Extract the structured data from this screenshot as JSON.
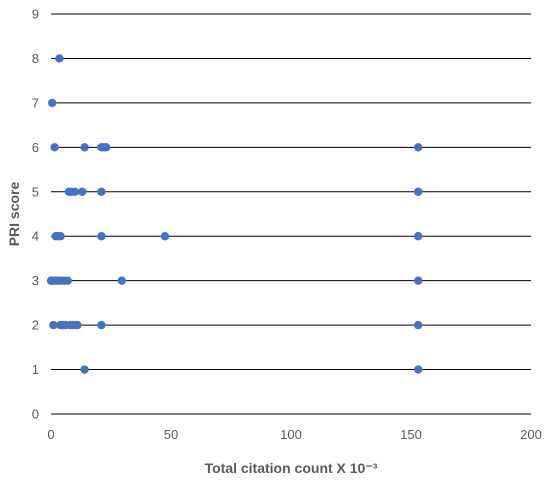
{
  "chart_data": {
    "type": "scatter",
    "title": "",
    "xlabel": "Total citation count X 10⁻³",
    "ylabel": "PRI score",
    "xlim": [
      0,
      200
    ],
    "ylim": [
      0,
      9
    ],
    "x_ticks": [
      "0",
      "50",
      "100",
      "150",
      "200"
    ],
    "y_ticks": [
      "0",
      "1",
      "2",
      "3",
      "4",
      "5",
      "6",
      "7",
      "8",
      "9"
    ],
    "grid": "horizontal",
    "legend": "none",
    "color": "#4472C4",
    "series": [
      {
        "points": [
          {
            "x": 3.5,
            "y": 8
          },
          {
            "x": 0.5,
            "y": 7
          },
          {
            "x": 1.5,
            "y": 6
          },
          {
            "x": 14,
            "y": 6
          },
          {
            "x": 21,
            "y": 6
          },
          {
            "x": 22,
            "y": 6
          },
          {
            "x": 23,
            "y": 6
          },
          {
            "x": 153,
            "y": 6
          },
          {
            "x": 7.5,
            "y": 5
          },
          {
            "x": 8.5,
            "y": 5
          },
          {
            "x": 10,
            "y": 5
          },
          {
            "x": 13,
            "y": 5
          },
          {
            "x": 21,
            "y": 5
          },
          {
            "x": 153,
            "y": 5
          },
          {
            "x": 2,
            "y": 4
          },
          {
            "x": 3,
            "y": 4
          },
          {
            "x": 4,
            "y": 4
          },
          {
            "x": 21,
            "y": 4
          },
          {
            "x": 47.5,
            "y": 4
          },
          {
            "x": 153,
            "y": 4
          },
          {
            "x": 0,
            "y": 3
          },
          {
            "x": 0.5,
            "y": 3
          },
          {
            "x": 1,
            "y": 3
          },
          {
            "x": 2,
            "y": 3
          },
          {
            "x": 3,
            "y": 3
          },
          {
            "x": 4,
            "y": 3
          },
          {
            "x": 5.5,
            "y": 3
          },
          {
            "x": 7,
            "y": 3
          },
          {
            "x": 29.5,
            "y": 3
          },
          {
            "x": 153,
            "y": 3
          },
          {
            "x": 1,
            "y": 2
          },
          {
            "x": 4,
            "y": 2
          },
          {
            "x": 5,
            "y": 2
          },
          {
            "x": 6,
            "y": 2
          },
          {
            "x": 8,
            "y": 2
          },
          {
            "x": 9,
            "y": 2
          },
          {
            "x": 10,
            "y": 2
          },
          {
            "x": 11,
            "y": 2
          },
          {
            "x": 21,
            "y": 2
          },
          {
            "x": 153,
            "y": 2
          },
          {
            "x": 14,
            "y": 1
          },
          {
            "x": 153,
            "y": 1
          }
        ]
      }
    ]
  }
}
